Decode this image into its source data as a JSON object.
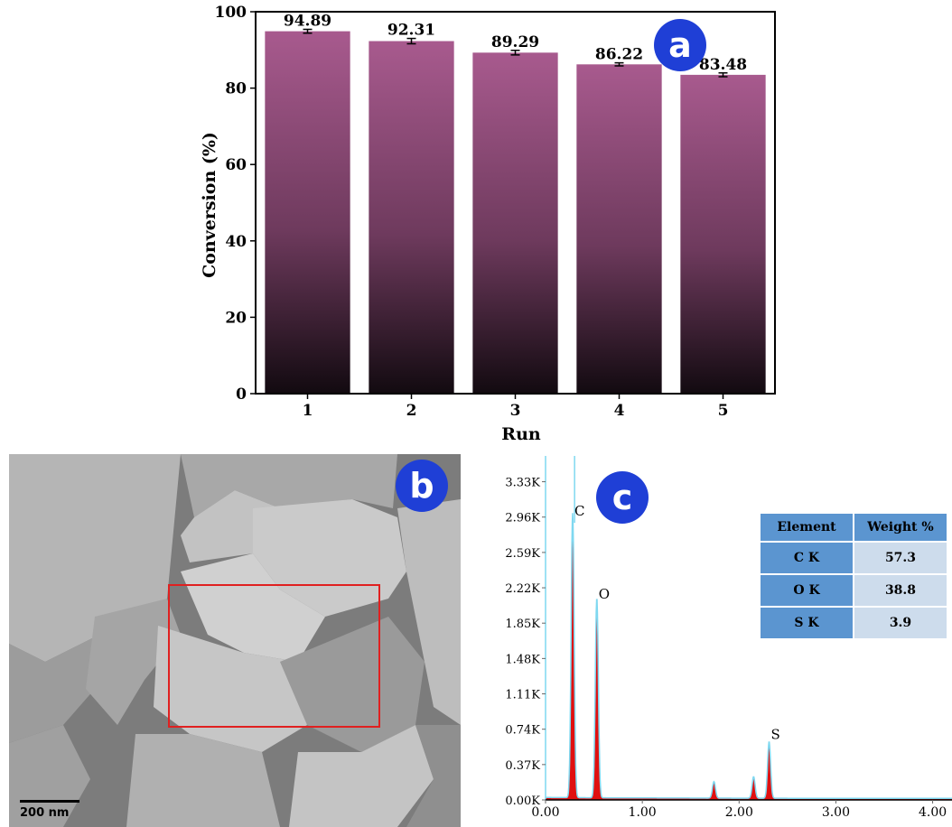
{
  "panel_labels": {
    "a": "a",
    "b": "b",
    "c": "c"
  },
  "colors": {
    "bar_top": "#a85a8e",
    "bar_bottom": "#120a10",
    "badge": "#1f3fd6",
    "sem_box": "#e02020",
    "eds_fill": "#e01010",
    "eds_line": "#7fd8f0",
    "table_header": "#5b95d0",
    "table_cell": "#cddcec"
  },
  "chart_data": [
    {
      "type": "bar",
      "categories": [
        "1",
        "2",
        "3",
        "4",
        "5"
      ],
      "values": [
        94.89,
        92.31,
        89.29,
        86.22,
        83.48
      ],
      "value_labels": [
        "94.89",
        "92.31",
        "89.29",
        "86.22",
        "83.48"
      ],
      "errors": [
        0.5,
        0.7,
        0.6,
        0.4,
        0.5
      ],
      "xlabel": "Run",
      "ylabel": "Conversion (%)",
      "ylim": [
        0,
        100
      ],
      "yticks": [
        "0",
        "20",
        "40",
        "60",
        "80",
        "100"
      ],
      "grid": false
    },
    {
      "type": "area",
      "xticks": [
        "0.00",
        "1.00",
        "2.00",
        "3.00",
        "4.00"
      ],
      "xlim": [
        0,
        4.2
      ],
      "yticks": [
        "0.00K",
        "0.37K",
        "0.74K",
        "1.11K",
        "1.48K",
        "1.85K",
        "2.22K",
        "2.59K",
        "2.96K",
        "3.33K"
      ],
      "ylim": [
        0,
        3.6
      ],
      "peaks": [
        {
          "label": "C",
          "x": 0.28,
          "y": 2.92
        },
        {
          "label": "O",
          "x": 0.53,
          "y": 2.05
        },
        {
          "label": "S",
          "x": 2.31,
          "y": 0.58
        }
      ],
      "minor_peaks": [
        {
          "x": 1.74,
          "y": 0.17
        },
        {
          "x": 2.15,
          "y": 0.22
        }
      ],
      "table": {
        "headers": [
          "Element",
          "Weight %"
        ],
        "rows": [
          {
            "element": "C K",
            "weight": "57.3"
          },
          {
            "element": "O K",
            "weight": "38.8"
          },
          {
            "element": "S K",
            "weight": "3.9"
          }
        ]
      }
    }
  ],
  "sem": {
    "scale_bar_label": "200 nm"
  }
}
